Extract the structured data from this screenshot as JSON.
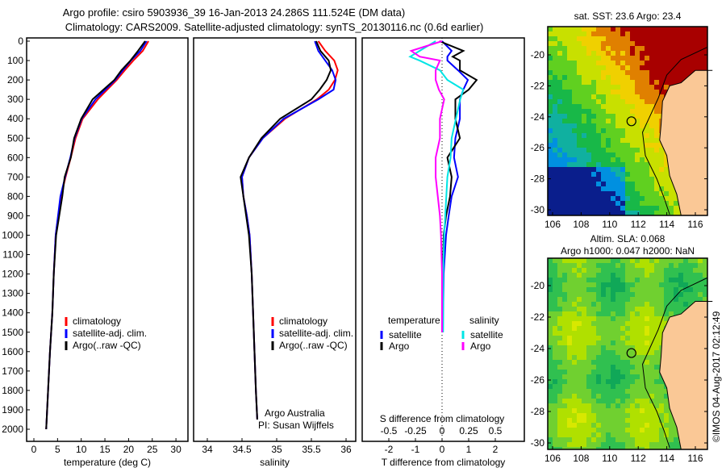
{
  "header": {
    "title_line1": "Argo profile: csiro 5903936_39 16-Jan-2013 24.286S 111.524E (DM data)",
    "title_line2": "Climatology: CARS2009. Satellite-adjusted climatology: synTS_20130116.nc (0.6d earlier)"
  },
  "credit": "©IMOS 04-Aug-2017 02:12:49",
  "colors": {
    "clim": "#ff0000",
    "sat": "#0000ff",
    "argo": "#000000",
    "s_sat": "#00e5e5",
    "s_argo": "#ff00ff"
  },
  "chart_data": [
    {
      "type": "line",
      "id": "temperature",
      "xlabel": "temperature (deg C)",
      "ylabel": "depth",
      "xlim": [
        -2,
        31
      ],
      "ylim": [
        2000,
        0
      ],
      "xticks": [
        "0",
        "5",
        "10",
        "15",
        "20",
        "25",
        "30"
      ],
      "yticks": [
        "0",
        "100",
        "200",
        "300",
        "400",
        "500",
        "600",
        "700",
        "800",
        "900",
        "1000",
        "1100",
        "1200",
        "1300",
        "1400",
        "1500",
        "1600",
        "1700",
        "1800",
        "1900",
        "2000"
      ],
      "legend": [
        "climatology",
        "satellite-adj. clim.",
        "Argo(..raw -QC)"
      ],
      "depth": [
        0,
        50,
        100,
        150,
        200,
        300,
        400,
        500,
        600,
        700,
        800,
        1000,
        1200,
        1400,
        1600,
        1800,
        2000
      ],
      "series": [
        {
          "name": "climatology",
          "color": "#ff0000",
          "values": [
            24.2,
            23,
            21,
            19.2,
            17.5,
            13.5,
            10.3,
            8.8,
            7.8,
            6.7,
            5.7,
            4.6,
            4.2,
            3.9,
            3.4,
            3.0,
            2.6
          ]
        },
        {
          "name": "satellite-adj. clim.",
          "color": "#0000ff",
          "values": [
            23.8,
            22.5,
            20.5,
            18.8,
            17.2,
            13,
            10.1,
            8.6,
            7.7,
            6.6,
            5.6,
            4.6,
            4.2,
            3.9,
            3.4,
            3.0,
            2.6
          ]
        },
        {
          "name": "Argo(..raw -QC)",
          "color": "#000000",
          "values": [
            23.5,
            22,
            20.4,
            18.5,
            17,
            12.4,
            10,
            8.5,
            7.8,
            6.5,
            6,
            4.7,
            4.2,
            3.9,
            3.4,
            3.0,
            2.6
          ]
        }
      ]
    },
    {
      "type": "line",
      "id": "salinity",
      "xlabel": "salinity",
      "ylabel": "depth",
      "xlim": [
        33.8,
        36.35
      ],
      "ylim": [
        2000,
        0
      ],
      "xticks": [
        "34",
        "34.5",
        "35",
        "35.5",
        "36"
      ],
      "legend": [
        "climatology",
        "satellite-adj. clim.",
        "Argo(..raw -QC)"
      ],
      "annotation": [
        "Argo Australia",
        "PI: Susan Wijffels"
      ],
      "depth": [
        0,
        50,
        100,
        150,
        200,
        250,
        300,
        400,
        500,
        600,
        700,
        800,
        900,
        1000,
        1200,
        1400,
        1600,
        1800,
        1950
      ],
      "series": [
        {
          "name": "climatology",
          "color": "#ff0000",
          "values": [
            35.6,
            35.7,
            35.83,
            35.88,
            35.84,
            35.75,
            35.58,
            35.12,
            34.8,
            34.6,
            34.5,
            34.52,
            34.57,
            34.61,
            34.64,
            34.66,
            34.68,
            34.7,
            34.72
          ]
        },
        {
          "name": "satellite-adj. clim.",
          "color": "#0000ff",
          "values": [
            35.55,
            35.6,
            35.7,
            35.8,
            35.85,
            35.82,
            35.6,
            35.1,
            34.8,
            34.6,
            34.5,
            34.52,
            34.57,
            34.61,
            34.64,
            34.66,
            34.68,
            34.7,
            34.72
          ]
        },
        {
          "name": "Argo(..raw -QC)",
          "color": "#000000",
          "values": [
            35.57,
            35.63,
            35.75,
            35.78,
            35.72,
            35.62,
            35.5,
            35.05,
            34.78,
            34.6,
            34.48,
            34.52,
            34.56,
            34.6,
            34.64,
            34.66,
            34.68,
            34.7,
            34.72
          ]
        }
      ]
    },
    {
      "type": "line",
      "id": "differences",
      "xlabel": "T difference from climatology",
      "x2label": "S difference from climatology",
      "xlim": [
        -3,
        3
      ],
      "x2lim": [
        -0.75,
        0.75
      ],
      "ylim": [
        2000,
        0
      ],
      "xticks": [
        "-2",
        "-1",
        "0",
        "1",
        "2"
      ],
      "x2ticks": [
        "-0.5",
        "-0.25",
        "0",
        "0.25",
        "0.5"
      ],
      "legend_headers": [
        "temperature",
        "salinity"
      ],
      "legend": [
        "satellite",
        "Argo",
        "satellite",
        "Argo"
      ],
      "depth": [
        0,
        50,
        80,
        100,
        150,
        200,
        250,
        300,
        400,
        500,
        600,
        700,
        800,
        900,
        1000,
        1200,
        1500
      ],
      "series": [
        {
          "name": "T satellite",
          "color": "#0000ff",
          "kind": "T",
          "values": [
            0,
            0.36,
            0.2,
            0.2,
            0.6,
            0.97,
            0.8,
            0.67,
            0.67,
            0.5,
            0.45,
            0.6,
            0.36,
            0.25,
            0.15,
            0.06,
            0.03
          ]
        },
        {
          "name": "T Argo",
          "color": "#000000",
          "kind": "T",
          "values": [
            -0.1,
            0.8,
            0.4,
            0.67,
            0.67,
            1.3,
            1.0,
            0.5,
            0.5,
            0.67,
            0.2,
            0.36,
            0.3,
            0.15,
            0.06,
            0.03,
            0
          ]
        },
        {
          "name": "S satellite",
          "color": "#00e5e5",
          "kind": "S",
          "values": [
            -0.06,
            -0.21,
            -0.3,
            -0.21,
            -0.02,
            0.05,
            0.2,
            0.17,
            0.13,
            0.09,
            0.08,
            0.05,
            0.04,
            0.03,
            0.02,
            0.01,
            0.01
          ]
        },
        {
          "name": "S Argo",
          "color": "#ff00ff",
          "kind": "S",
          "values": [
            0,
            -0.29,
            -0.21,
            -0.02,
            -0.06,
            -0.06,
            -0.03,
            0.02,
            -0.02,
            -0.02,
            -0.06,
            -0.06,
            -0.04,
            -0.02,
            -0.01,
            0,
            0
          ]
        }
      ]
    },
    {
      "type": "heatmap",
      "id": "sst-map",
      "title": "sat. SST: 23.6 Argo: 23.4",
      "xticks": [
        "106",
        "108",
        "110",
        "112",
        "114",
        "116"
      ],
      "yticks": [
        "-20",
        "-22",
        "-24",
        "-26",
        "-28",
        "-30"
      ],
      "argo_position": {
        "lon": 111.524,
        "lat": -24.286
      }
    },
    {
      "type": "heatmap",
      "id": "sla-map",
      "title": "Altim. SLA: 0.068",
      "subtitle": "Argo h1000: 0.047 h2000: NaN",
      "xticks": [
        "106",
        "108",
        "110",
        "112",
        "114",
        "116"
      ],
      "yticks": [
        "-20",
        "-22",
        "-24",
        "-26",
        "-28",
        "-30"
      ],
      "argo_position": {
        "lon": 111.524,
        "lat": -24.286
      }
    }
  ]
}
